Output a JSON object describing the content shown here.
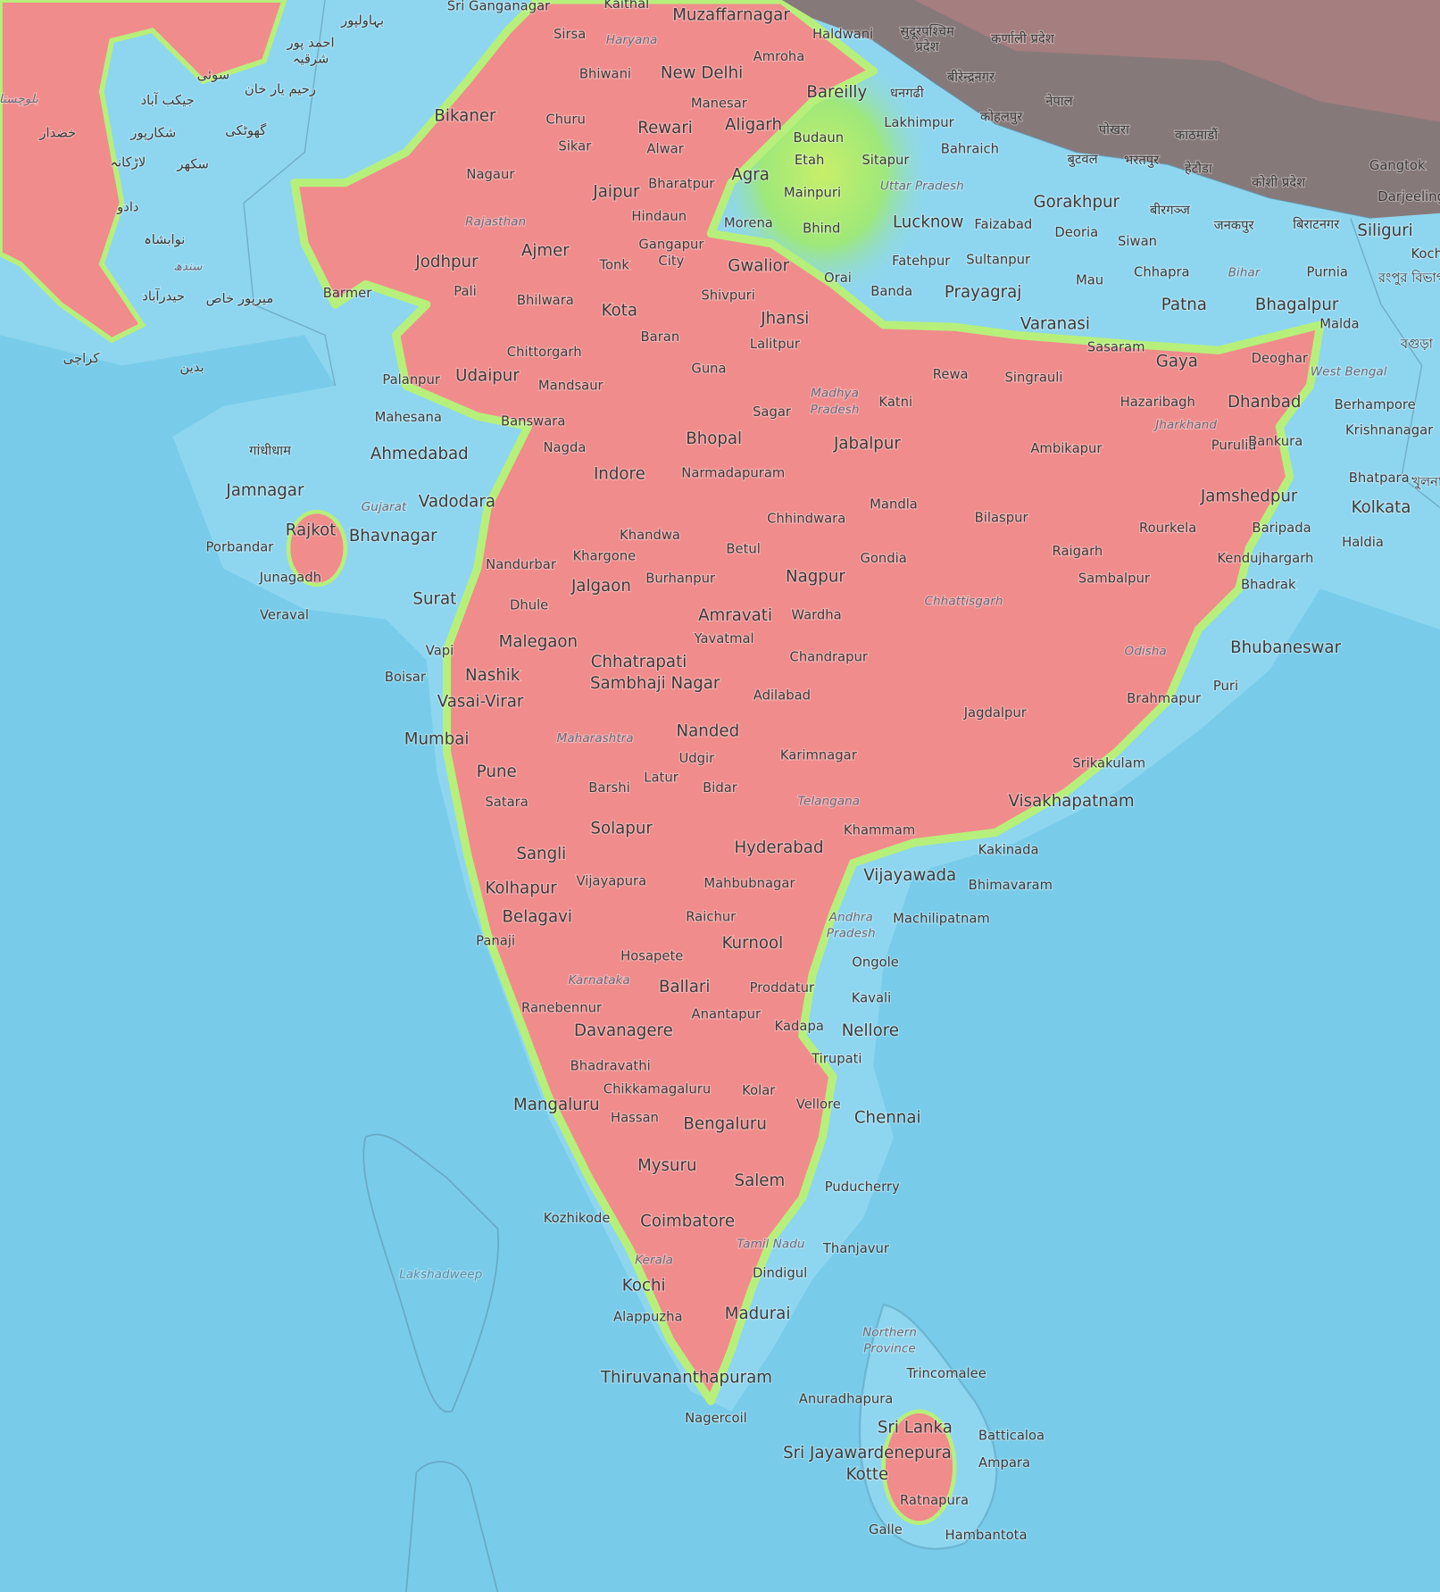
{
  "map": {
    "colors": {
      "ocean": "#78cce9",
      "land_low": "#8ed6ef",
      "land_high": "#f08c8c",
      "transition": "#b6f07a",
      "mountain_grey": "#86797a"
    },
    "labels": [
      {
        "text": "Sri Ganganagar",
        "kind": "city"
      },
      {
        "text": "Kaithal",
        "kind": "city"
      },
      {
        "text": "Muzaffarnagar",
        "kind": "major"
      },
      {
        "text": "Sirsa",
        "kind": "city"
      },
      {
        "text": "Haryana",
        "kind": "region"
      },
      {
        "text": "Amroha",
        "kind": "city"
      },
      {
        "text": "Haldwani",
        "kind": "city"
      },
      {
        "text": "Bhiwani",
        "kind": "city"
      },
      {
        "text": "New Delhi",
        "kind": "major"
      },
      {
        "text": "Manesar",
        "kind": "city"
      },
      {
        "text": "Bareilly",
        "kind": "major"
      },
      {
        "text": "Bikaner",
        "kind": "major"
      },
      {
        "text": "Churu",
        "kind": "city"
      },
      {
        "text": "Rewari",
        "kind": "major"
      },
      {
        "text": "Aligarh",
        "kind": "major"
      },
      {
        "text": "Lakhimpur",
        "kind": "city"
      },
      {
        "text": "Budaun",
        "kind": "city"
      },
      {
        "text": "Bahraich",
        "kind": "city"
      },
      {
        "text": "Sikar",
        "kind": "city"
      },
      {
        "text": "Alwar",
        "kind": "city"
      },
      {
        "text": "Etah",
        "kind": "city"
      },
      {
        "text": "Sitapur",
        "kind": "city"
      },
      {
        "text": "Nagaur",
        "kind": "city"
      },
      {
        "text": "Bharatpur",
        "kind": "city"
      },
      {
        "text": "Agra",
        "kind": "major"
      },
      {
        "text": "Uttar Pradesh",
        "kind": "region"
      },
      {
        "text": "Jaipur",
        "kind": "major"
      },
      {
        "text": "Mainpuri",
        "kind": "city"
      },
      {
        "text": "Hindaun",
        "kind": "city"
      },
      {
        "text": "Morena",
        "kind": "city"
      },
      {
        "text": "Rajasthan",
        "kind": "region"
      },
      {
        "text": "Bhind",
        "kind": "city"
      },
      {
        "text": "Lucknow",
        "kind": "major"
      },
      {
        "text": "Faizabad",
        "kind": "city"
      },
      {
        "text": "Gorakhpur",
        "kind": "major"
      },
      {
        "text": "Deoria",
        "kind": "city"
      },
      {
        "text": "Siwan",
        "kind": "city"
      },
      {
        "text": "Ajmer",
        "kind": "major"
      },
      {
        "text": "Gangapur",
        "kind": "city"
      },
      {
        "text": "City",
        "kind": "city"
      },
      {
        "text": "Gwalior",
        "kind": "major"
      },
      {
        "text": "Tonk",
        "kind": "city"
      },
      {
        "text": "Jodhpur",
        "kind": "major"
      },
      {
        "text": "Fatehpur",
        "kind": "city"
      },
      {
        "text": "Sultanpur",
        "kind": "city"
      },
      {
        "text": "Mau",
        "kind": "city"
      },
      {
        "text": "Chhapra",
        "kind": "city"
      },
      {
        "text": "Bihar",
        "kind": "region"
      },
      {
        "text": "Purnia",
        "kind": "city"
      },
      {
        "text": "Siliguri",
        "kind": "major"
      },
      {
        "text": "Orai",
        "kind": "city"
      },
      {
        "text": "Pali",
        "kind": "city"
      },
      {
        "text": "Barmer",
        "kind": "city"
      },
      {
        "text": "Bhilwara",
        "kind": "city"
      },
      {
        "text": "Shivpuri",
        "kind": "city"
      },
      {
        "text": "Banda",
        "kind": "city"
      },
      {
        "text": "Prayagraj",
        "kind": "major"
      },
      {
        "text": "Patna",
        "kind": "major"
      },
      {
        "text": "Bhagalpur",
        "kind": "major"
      },
      {
        "text": "Kota",
        "kind": "major"
      },
      {
        "text": "Jhansi",
        "kind": "major"
      },
      {
        "text": "Varanasi",
        "kind": "major"
      },
      {
        "text": "Malda",
        "kind": "city"
      },
      {
        "text": "Chittorgarh",
        "kind": "city"
      },
      {
        "text": "Baran",
        "kind": "city"
      },
      {
        "text": "Lalitpur",
        "kind": "city"
      },
      {
        "text": "Sasaram",
        "kind": "city"
      },
      {
        "text": "Gaya",
        "kind": "major"
      },
      {
        "text": "Deoghar",
        "kind": "city"
      },
      {
        "text": "Udaipur",
        "kind": "major"
      },
      {
        "text": "Palanpur",
        "kind": "city"
      },
      {
        "text": "Guna",
        "kind": "city"
      },
      {
        "text": "Rewa",
        "kind": "city"
      },
      {
        "text": "Singrauli",
        "kind": "city"
      },
      {
        "text": "West Bengal",
        "kind": "region"
      },
      {
        "text": "Mandsaur",
        "kind": "city"
      },
      {
        "text": "Madhya",
        "kind": "region"
      },
      {
        "text": "Pradesh",
        "kind": "region"
      },
      {
        "text": "Katni",
        "kind": "city"
      },
      {
        "text": "Hazaribagh",
        "kind": "city"
      },
      {
        "text": "Dhanbad",
        "kind": "major"
      },
      {
        "text": "Berhampore",
        "kind": "city"
      },
      {
        "text": "Mahesana",
        "kind": "city"
      },
      {
        "text": "Banswara",
        "kind": "city"
      },
      {
        "text": "Sagar",
        "kind": "city"
      },
      {
        "text": "Jharkhand",
        "kind": "region"
      },
      {
        "text": "Krishnanagar",
        "kind": "city"
      },
      {
        "text": "Bhopal",
        "kind": "major"
      },
      {
        "text": "Jabalpur",
        "kind": "major"
      },
      {
        "text": "Purulia",
        "kind": "city"
      },
      {
        "text": "Bankura",
        "kind": "city"
      },
      {
        "text": "Ahmedabad",
        "kind": "major"
      },
      {
        "text": "Nagda",
        "kind": "city"
      },
      {
        "text": "Ambikapur",
        "kind": "city"
      },
      {
        "text": "Indore",
        "kind": "major"
      },
      {
        "text": "Narmadapuram",
        "kind": "city"
      },
      {
        "text": "Bhatpara",
        "kind": "city"
      },
      {
        "text": "Jamnagar",
        "kind": "major"
      },
      {
        "text": "Gujarat",
        "kind": "region"
      },
      {
        "text": "Vadodara",
        "kind": "major"
      },
      {
        "text": "Mandla",
        "kind": "city"
      },
      {
        "text": "Jamshedpur",
        "kind": "major"
      },
      {
        "text": "Kolkata",
        "kind": "major"
      },
      {
        "text": "Rajkot",
        "kind": "major"
      },
      {
        "text": "Bhavnagar",
        "kind": "major"
      },
      {
        "text": "Khandwa",
        "kind": "city"
      },
      {
        "text": "Chhindwara",
        "kind": "city"
      },
      {
        "text": "Bilaspur",
        "kind": "city"
      },
      {
        "text": "Rourkela",
        "kind": "city"
      },
      {
        "text": "Baripada",
        "kind": "city"
      },
      {
        "text": "Haldia",
        "kind": "city"
      },
      {
        "text": "Porbandar",
        "kind": "city"
      },
      {
        "text": "Nandurbar",
        "kind": "city"
      },
      {
        "text": "Khargone",
        "kind": "city"
      },
      {
        "text": "Betul",
        "kind": "city"
      },
      {
        "text": "Gondia",
        "kind": "city"
      },
      {
        "text": "Raigarh",
        "kind": "city"
      },
      {
        "text": "Kendujhargarh",
        "kind": "city"
      },
      {
        "text": "Junagadh",
        "kind": "city"
      },
      {
        "text": "Jalgaon",
        "kind": "major"
      },
      {
        "text": "Burhanpur",
        "kind": "city"
      },
      {
        "text": "Nagpur",
        "kind": "major"
      },
      {
        "text": "Sambalpur",
        "kind": "city"
      },
      {
        "text": "Bhadrak",
        "kind": "city"
      },
      {
        "text": "Chhattisgarh",
        "kind": "region"
      },
      {
        "text": "Surat",
        "kind": "major"
      },
      {
        "text": "Veraval",
        "kind": "city"
      },
      {
        "text": "Dhule",
        "kind": "city"
      },
      {
        "text": "Amravati",
        "kind": "major"
      },
      {
        "text": "Wardha",
        "kind": "city"
      },
      {
        "text": "Vapi",
        "kind": "city"
      },
      {
        "text": "Malegaon",
        "kind": "major"
      },
      {
        "text": "Yavatmal",
        "kind": "city"
      },
      {
        "text": "Odisha",
        "kind": "region"
      },
      {
        "text": "Bhubaneswar",
        "kind": "major"
      },
      {
        "text": "Chandrapur",
        "kind": "city"
      },
      {
        "text": "Chhatrapati",
        "kind": "major"
      },
      {
        "text": "Sambhaji Nagar",
        "kind": "major"
      },
      {
        "text": "Nashik",
        "kind": "major"
      },
      {
        "text": "Boisar",
        "kind": "city"
      },
      {
        "text": "Vasai-Virar",
        "kind": "major"
      },
      {
        "text": "Adilabad",
        "kind": "city"
      },
      {
        "text": "Brahmapur",
        "kind": "city"
      },
      {
        "text": "Puri",
        "kind": "city"
      },
      {
        "text": "Jagdalpur",
        "kind": "city"
      },
      {
        "text": "Mumbai",
        "kind": "major"
      },
      {
        "text": "Maharashtra",
        "kind": "region"
      },
      {
        "text": "Nanded",
        "kind": "major"
      },
      {
        "text": "Karimnagar",
        "kind": "city"
      },
      {
        "text": "Udgir",
        "kind": "city"
      },
      {
        "text": "Srikakulam",
        "kind": "city"
      },
      {
        "text": "Pune",
        "kind": "major"
      },
      {
        "text": "Latur",
        "kind": "city"
      },
      {
        "text": "Barshi",
        "kind": "city"
      },
      {
        "text": "Bidar",
        "kind": "city"
      },
      {
        "text": "Telangana",
        "kind": "region"
      },
      {
        "text": "Visakhapatnam",
        "kind": "major"
      },
      {
        "text": "Satara",
        "kind": "city"
      },
      {
        "text": "Solapur",
        "kind": "major"
      },
      {
        "text": "Khammam",
        "kind": "city"
      },
      {
        "text": "Hyderabad",
        "kind": "major"
      },
      {
        "text": "Sangli",
        "kind": "major"
      },
      {
        "text": "Kakinada",
        "kind": "city"
      },
      {
        "text": "Vijayawada",
        "kind": "major"
      },
      {
        "text": "Bhimavaram",
        "kind": "city"
      },
      {
        "text": "Vijayapura",
        "kind": "city"
      },
      {
        "text": "Mahbubnagar",
        "kind": "city"
      },
      {
        "text": "Kolhapur",
        "kind": "major"
      },
      {
        "text": "Belagavi",
        "kind": "major"
      },
      {
        "text": "Raichur",
        "kind": "city"
      },
      {
        "text": "Machilipatnam",
        "kind": "city"
      },
      {
        "text": "Andhra",
        "kind": "region"
      },
      {
        "text": "Pradesh",
        "kind": "region"
      },
      {
        "text": "Panaji",
        "kind": "city"
      },
      {
        "text": "Kurnool",
        "kind": "major"
      },
      {
        "text": "Hosapete",
        "kind": "city"
      },
      {
        "text": "Ongole",
        "kind": "city"
      },
      {
        "text": "Karnataka",
        "kind": "region"
      },
      {
        "text": "Ballari",
        "kind": "major"
      },
      {
        "text": "Proddatur",
        "kind": "city"
      },
      {
        "text": "Kavali",
        "kind": "city"
      },
      {
        "text": "Ranebennur",
        "kind": "city"
      },
      {
        "text": "Anantapur",
        "kind": "city"
      },
      {
        "text": "Kadapa",
        "kind": "city"
      },
      {
        "text": "Nellore",
        "kind": "major"
      },
      {
        "text": "Davanagere",
        "kind": "major"
      },
      {
        "text": "Tirupati",
        "kind": "city"
      },
      {
        "text": "Bhadravathi",
        "kind": "city"
      },
      {
        "text": "Chikkamagaluru",
        "kind": "city"
      },
      {
        "text": "Kolar",
        "kind": "city"
      },
      {
        "text": "Mangaluru",
        "kind": "major"
      },
      {
        "text": "Vellore",
        "kind": "city"
      },
      {
        "text": "Hassan",
        "kind": "city"
      },
      {
        "text": "Bengaluru",
        "kind": "major"
      },
      {
        "text": "Chennai",
        "kind": "major"
      },
      {
        "text": "Mysuru",
        "kind": "major"
      },
      {
        "text": "Salem",
        "kind": "major"
      },
      {
        "text": "Puducherry",
        "kind": "city"
      },
      {
        "text": "Kozhikode",
        "kind": "city"
      },
      {
        "text": "Coimbatore",
        "kind": "major"
      },
      {
        "text": "Tamil Nadu",
        "kind": "region"
      },
      {
        "text": "Thanjavur",
        "kind": "city"
      },
      {
        "text": "Kerala",
        "kind": "region"
      },
      {
        "text": "Dindigul",
        "kind": "city"
      },
      {
        "text": "Lakshadweep",
        "kind": "sea"
      },
      {
        "text": "Kochi",
        "kind": "major"
      },
      {
        "text": "Madurai",
        "kind": "major"
      },
      {
        "text": "Alappuzha",
        "kind": "city"
      },
      {
        "text": "Northern",
        "kind": "region"
      },
      {
        "text": "Province",
        "kind": "region"
      },
      {
        "text": "Trincomalee",
        "kind": "city"
      },
      {
        "text": "Thiruvananthapuram",
        "kind": "major"
      },
      {
        "text": "Anuradhapura",
        "kind": "city"
      },
      {
        "text": "Nagercoil",
        "kind": "city"
      },
      {
        "text": "Sri Lanka",
        "kind": "major"
      },
      {
        "text": "Batticaloa",
        "kind": "city"
      },
      {
        "text": "Sri Jayawardenepura",
        "kind": "major"
      },
      {
        "text": "Kotte",
        "kind": "major"
      },
      {
        "text": "Ampara",
        "kind": "city"
      },
      {
        "text": "Ratnapura",
        "kind": "city"
      },
      {
        "text": "Galle",
        "kind": "city"
      },
      {
        "text": "Hambantota",
        "kind": "city"
      },
      {
        "text": "Gangtok",
        "kind": "city"
      },
      {
        "text": "Darjeeling",
        "kind": "city"
      },
      {
        "text": "Koch",
        "kind": "city"
      },
      {
        "text": "بہاولپور",
        "kind": "foreign"
      },
      {
        "text": "احمد پور",
        "kind": "foreign"
      },
      {
        "text": "شرقیہ",
        "kind": "foreign"
      },
      {
        "text": "سوئی",
        "kind": "foreign"
      },
      {
        "text": "رحیم یار خان",
        "kind": "foreign"
      },
      {
        "text": "جیکب آباد",
        "kind": "foreign"
      },
      {
        "text": "شکارپور",
        "kind": "foreign"
      },
      {
        "text": "گھوٹکی",
        "kind": "foreign"
      },
      {
        "text": "خضدار",
        "kind": "foreign"
      },
      {
        "text": "لاڑکانہ",
        "kind": "foreign"
      },
      {
        "text": "سکھر",
        "kind": "foreign"
      },
      {
        "text": "دادو",
        "kind": "foreign"
      },
      {
        "text": "نوابشاہ",
        "kind": "foreign"
      },
      {
        "text": "سندھ",
        "kind": "region"
      },
      {
        "text": "حیدرآباد",
        "kind": "foreign"
      },
      {
        "text": "میرپور خاص",
        "kind": "foreign"
      },
      {
        "text": "کراچی",
        "kind": "foreign"
      },
      {
        "text": "بدین",
        "kind": "foreign"
      },
      {
        "text": "بلوچستان",
        "kind": "region"
      },
      {
        "text": "गांधीधाम",
        "kind": "foreign"
      },
      {
        "text": "सुदूरपश्चिम",
        "kind": "foreign"
      },
      {
        "text": "प्रदेश",
        "kind": "foreign"
      },
      {
        "text": "कर्णाली प्रदेश",
        "kind": "foreign"
      },
      {
        "text": "धनगढी",
        "kind": "foreign"
      },
      {
        "text": "बीरेन्द्रनगर",
        "kind": "foreign"
      },
      {
        "text": "नेपाल",
        "kind": "foreign"
      },
      {
        "text": "कोहलपुर",
        "kind": "foreign"
      },
      {
        "text": "पोखरा",
        "kind": "foreign"
      },
      {
        "text": "काठमाडौं",
        "kind": "foreign"
      },
      {
        "text": "बुटवल",
        "kind": "foreign"
      },
      {
        "text": "भरतपुर",
        "kind": "foreign"
      },
      {
        "text": "हेटौडा",
        "kind": "foreign"
      },
      {
        "text": "कोशी प्रदेश",
        "kind": "foreign"
      },
      {
        "text": "बीरगञ्ज",
        "kind": "foreign"
      },
      {
        "text": "जनकपुर",
        "kind": "foreign"
      },
      {
        "text": "बिराटनगर",
        "kind": "foreign"
      },
      {
        "text": "রংপুর বিভাগ",
        "kind": "foreign"
      },
      {
        "text": "বগুড়া",
        "kind": "foreign"
      },
      {
        "text": "খুলনা",
        "kind": "foreign"
      }
    ]
  }
}
